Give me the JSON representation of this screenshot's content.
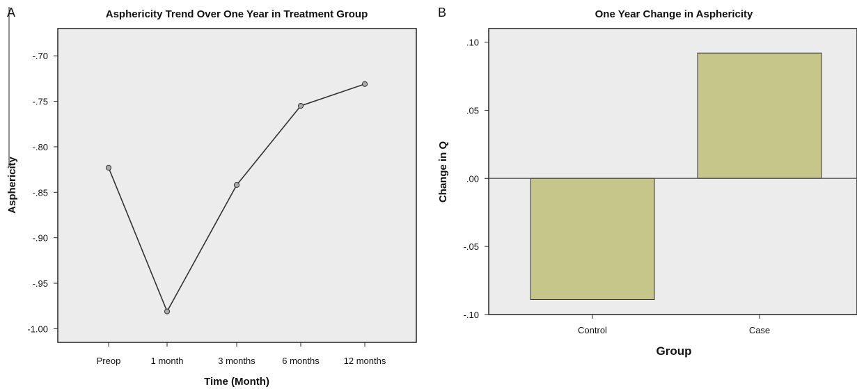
{
  "chart_data": [
    {
      "panel": "A",
      "type": "line",
      "title": "Asphericity Trend Over One Year in Treatment Group",
      "xlabel": "Time (Month)",
      "ylabel": "Asphericity",
      "categories": [
        "Preop",
        "1 month",
        "3 months",
        "6 months",
        "12 months"
      ],
      "series": [
        {
          "values": [
            -0.823,
            -0.981,
            -0.842,
            -0.755,
            -0.731
          ]
        }
      ],
      "ylim": [
        -1.015,
        -0.67
      ],
      "yticks": [
        -0.7,
        -0.75,
        -0.8,
        -0.85,
        -0.9,
        -0.95,
        -1.0
      ],
      "ytick_labels": [
        "-.70",
        "-.75",
        "-.80",
        "-.85",
        "-.90",
        "-.95",
        "-1.00"
      ],
      "grid": false,
      "colors": {
        "background": "#ececec",
        "line": "#333333",
        "marker": "#a9a9a9"
      }
    },
    {
      "panel": "B",
      "type": "bar",
      "title": "One Year Change in Asphericity",
      "xlabel": "Group",
      "ylabel": "Change in Q",
      "categories": [
        "Control",
        "Case"
      ],
      "values": [
        -0.089,
        0.092
      ],
      "ylim": [
        -0.1,
        0.11
      ],
      "yticks": [
        0.1,
        0.05,
        0.0,
        -0.05,
        -0.1
      ],
      "ytick_labels": [
        ".10",
        ".05",
        ".00",
        "-.05",
        "-.10"
      ],
      "grid": false,
      "colors": {
        "background": "#ececec",
        "bar": "#c6c68a",
        "bar_edge": "#333333",
        "zero_line": "#555555"
      }
    }
  ]
}
